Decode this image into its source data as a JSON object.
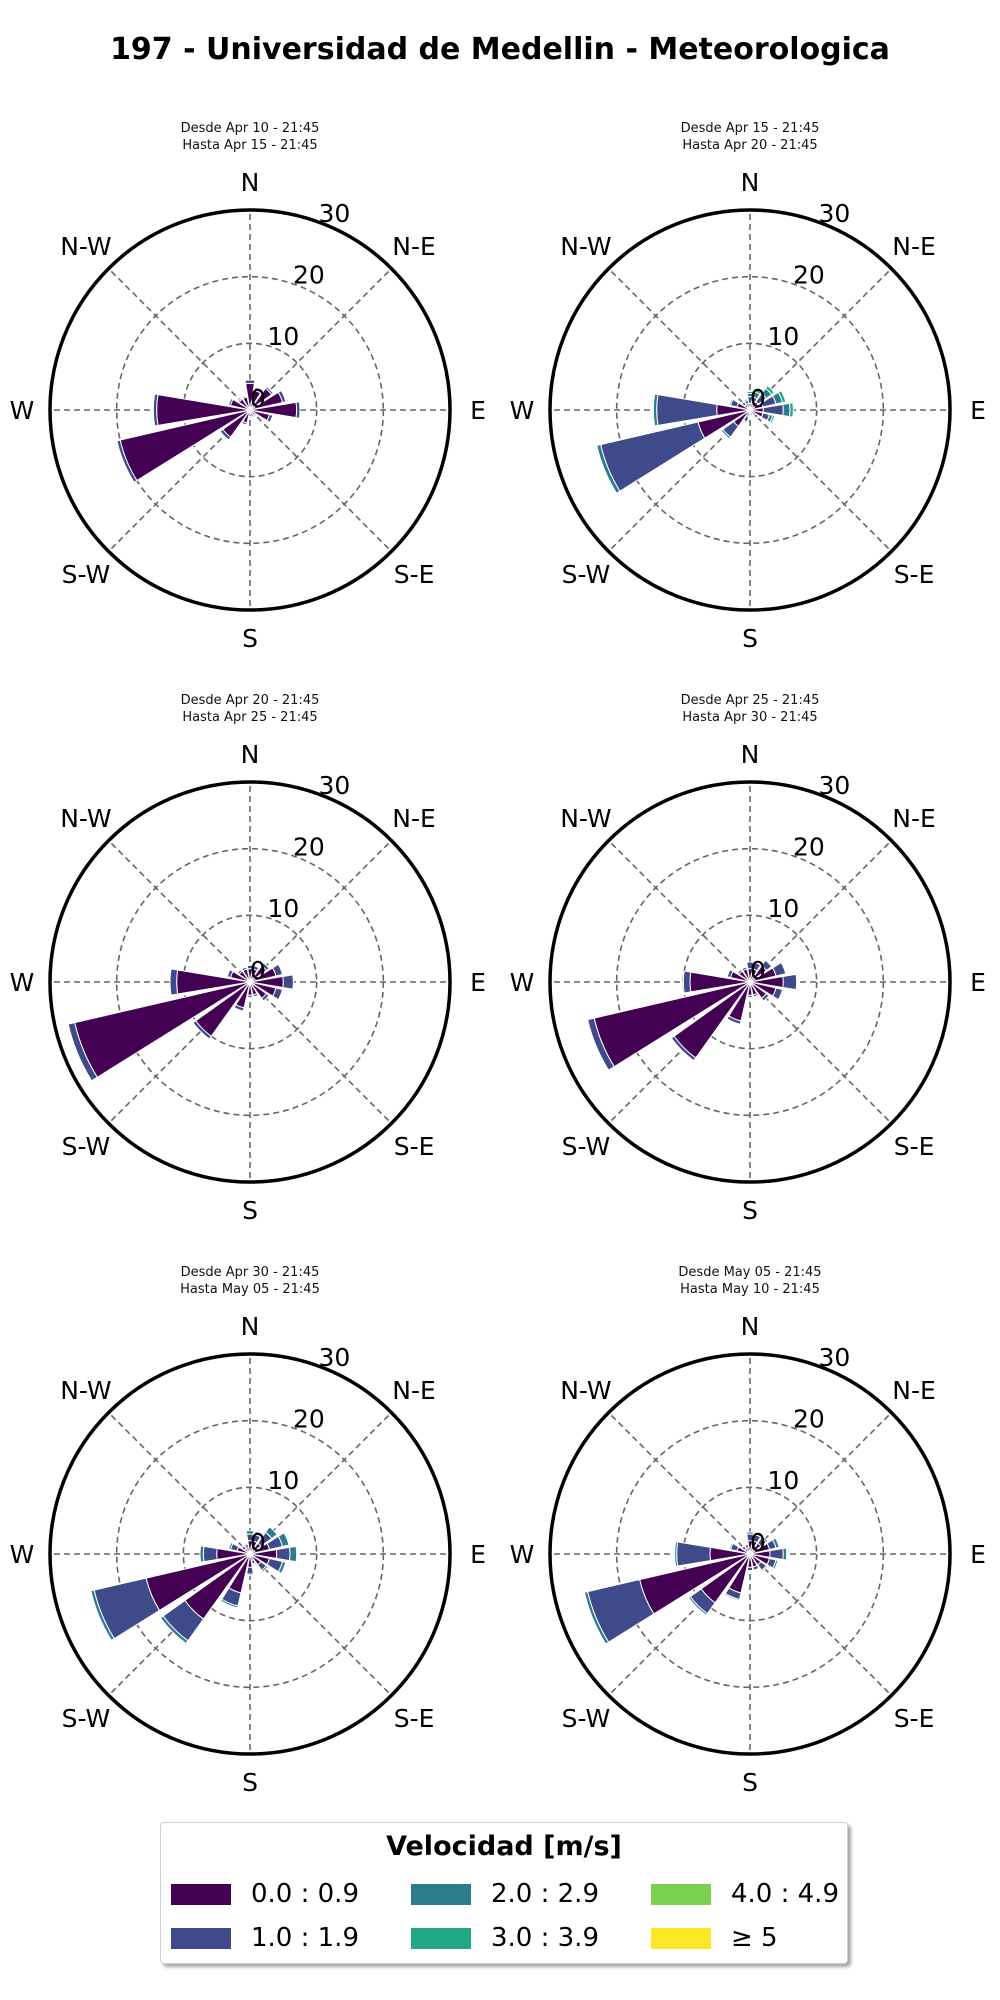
{
  "title": "197 - Universidad de Medellin - Meteorologica",
  "compass_labels": [
    "N",
    "N-E",
    "E",
    "S-E",
    "S",
    "S-W",
    "W",
    "N-W"
  ],
  "radial_ticks": [
    "0",
    "10",
    "20",
    "30"
  ],
  "colors": {
    "bins": [
      "#440154",
      "#3f4a8a",
      "#2c7c8e",
      "#22a884",
      "#7ad151",
      "#fde725"
    ],
    "grid": "#666666",
    "frame": "#000000"
  },
  "legend": {
    "title": "Velocidad [m/s]",
    "bins": [
      "0.0 : 0.9",
      "1.0 : 1.9",
      "2.0 : 2.9",
      "3.0 : 3.9",
      "4.0 : 4.9",
      "≥ 5"
    ]
  },
  "chart_data": [
    {
      "type": "windrose",
      "subtitle": [
        "Desde Apr 10 - 21:45",
        "Hasta Apr 15 - 21:45"
      ],
      "rmax": 30,
      "directions_deg": [
        0,
        22.5,
        45,
        67.5,
        90,
        112.5,
        135,
        157.5,
        180,
        202.5,
        225,
        247.5,
        270,
        292.5,
        315,
        337.5
      ],
      "series": [
        {
          "name": "0.0 : 0.9",
          "values": [
            4,
            3,
            4,
            5,
            7,
            3,
            1,
            1,
            1,
            2,
            5,
            20,
            14,
            3,
            2,
            2
          ]
        },
        {
          "name": "1.0 : 1.9",
          "values": [
            0.5,
            0.5,
            0.3,
            0.5,
            0.5,
            0.5,
            0.2,
            0.2,
            0.2,
            0.3,
            0.5,
            0.5,
            0.5,
            0.3,
            0.2,
            0.2
          ]
        },
        {
          "name": "2.0 : 2.9",
          "values": [
            0,
            0,
            0,
            0,
            0,
            0,
            0,
            0,
            0,
            0,
            0,
            0,
            0,
            0,
            0,
            0
          ]
        },
        {
          "name": "3.0 : 3.9",
          "values": [
            0,
            0,
            0,
            0,
            0,
            0,
            0,
            0,
            0,
            0,
            0,
            0,
            0,
            0,
            0,
            0
          ]
        },
        {
          "name": "4.0 : 4.9",
          "values": [
            0,
            0,
            0,
            0,
            0,
            0,
            0,
            0,
            0,
            0,
            0,
            0,
            0,
            0,
            0,
            0
          ]
        },
        {
          "name": "≥ 5",
          "values": [
            0,
            0,
            0,
            0,
            0,
            0,
            0,
            0,
            0,
            0,
            0,
            0,
            0,
            0,
            0,
            0
          ]
        }
      ]
    },
    {
      "type": "windrose",
      "subtitle": [
        "Desde Apr 15 - 21:45",
        "Hasta Apr 20 - 21:45"
      ],
      "rmax": 30,
      "directions_deg": [
        0,
        22.5,
        45,
        67.5,
        90,
        112.5,
        135,
        157.5,
        180,
        202.5,
        225,
        247.5,
        270,
        292.5,
        315,
        337.5
      ],
      "series": [
        {
          "name": "0.0 : 0.9",
          "values": [
            1,
            1,
            1.5,
            2,
            2,
            2,
            1,
            0.5,
            0.5,
            1,
            3,
            8,
            5,
            2,
            1,
            1
          ]
        },
        {
          "name": "1.0 : 1.9",
          "values": [
            1,
            1,
            1.5,
            2,
            3,
            1,
            0.5,
            0.3,
            0.3,
            0.8,
            2,
            15,
            9,
            1,
            0.5,
            0.5
          ]
        },
        {
          "name": "2.0 : 2.9",
          "values": [
            0.5,
            0.8,
            1,
            1,
            1,
            0.5,
            0.2,
            0.1,
            0.1,
            0.2,
            0.3,
            0.6,
            0.5,
            0.2,
            0.2,
            0.2
          ]
        },
        {
          "name": "3.0 : 3.9",
          "values": [
            0.3,
            0.5,
            0.5,
            0.5,
            0.5,
            0.3,
            0,
            0,
            0,
            0,
            0,
            0,
            0,
            0,
            0,
            0
          ]
        },
        {
          "name": "4.0 : 4.9",
          "values": [
            0,
            0,
            0,
            0,
            0,
            0,
            0,
            0,
            0,
            0,
            0,
            0,
            0,
            0,
            0,
            0
          ]
        },
        {
          "name": "≥ 5",
          "values": [
            0,
            0,
            0,
            0,
            0,
            0,
            0,
            0,
            0,
            0,
            0,
            0,
            0,
            0,
            0,
            0
          ]
        }
      ]
    },
    {
      "type": "windrose",
      "subtitle": [
        "Desde Apr 20 - 21:45",
        "Hasta Apr 25 - 21:45"
      ],
      "rmax": 30,
      "directions_deg": [
        0,
        22.5,
        45,
        67.5,
        90,
        112.5,
        135,
        157.5,
        180,
        202.5,
        225,
        247.5,
        270,
        292.5,
        315,
        337.5
      ],
      "series": [
        {
          "name": "0.0 : 0.9",
          "values": [
            2,
            2,
            3,
            4,
            5,
            4,
            3,
            2,
            2,
            4,
            10,
            27,
            11,
            3,
            2,
            2
          ]
        },
        {
          "name": "1.0 : 1.9",
          "values": [
            0.5,
            0.5,
            0.5,
            1,
            1.5,
            1,
            0.5,
            0.3,
            0.3,
            0.5,
            0.5,
            1,
            1,
            0.5,
            0.3,
            0.3
          ]
        },
        {
          "name": "2.0 : 2.9",
          "values": [
            0,
            0,
            0,
            0,
            0,
            0,
            0,
            0,
            0,
            0,
            0,
            0,
            0,
            0,
            0,
            0
          ]
        },
        {
          "name": "3.0 : 3.9",
          "values": [
            0,
            0,
            0,
            0,
            0,
            0,
            0,
            0,
            0,
            0,
            0,
            0,
            0,
            0,
            0,
            0
          ]
        },
        {
          "name": "4.0 : 4.9",
          "values": [
            0,
            0,
            0,
            0,
            0,
            0,
            0,
            0,
            0,
            0,
            0,
            0,
            0,
            0,
            0,
            0
          ]
        },
        {
          "name": "≥ 5",
          "values": [
            0,
            0,
            0,
            0,
            0,
            0,
            0,
            0,
            0,
            0,
            0,
            0,
            0,
            0,
            0,
            0
          ]
        }
      ]
    },
    {
      "type": "windrose",
      "subtitle": [
        "Desde Apr 25 - 21:45",
        "Hasta Apr 30 - 21:45"
      ],
      "rmax": 30,
      "directions_deg": [
        0,
        22.5,
        45,
        67.5,
        90,
        112.5,
        135,
        157.5,
        180,
        202.5,
        225,
        247.5,
        270,
        292.5,
        315,
        337.5
      ],
      "series": [
        {
          "name": "0.0 : 0.9",
          "values": [
            2,
            2,
            3,
            4,
            5,
            4,
            3,
            2,
            2,
            6,
            14,
            24,
            9,
            3,
            2,
            2
          ]
        },
        {
          "name": "1.0 : 1.9",
          "values": [
            1,
            1,
            1,
            1.5,
            2,
            1,
            0.5,
            0.3,
            0.3,
            0.5,
            0.5,
            1,
            1,
            0.5,
            0.3,
            0.3
          ]
        },
        {
          "name": "2.0 : 2.9",
          "values": [
            0,
            0,
            0,
            0,
            0,
            0,
            0,
            0,
            0,
            0,
            0,
            0,
            0,
            0,
            0,
            0
          ]
        },
        {
          "name": "3.0 : 3.9",
          "values": [
            0,
            0,
            0,
            0,
            0,
            0,
            0,
            0,
            0,
            0,
            0,
            0,
            0,
            0,
            0,
            0
          ]
        },
        {
          "name": "4.0 : 4.9",
          "values": [
            0,
            0,
            0,
            0,
            0,
            0,
            0,
            0,
            0,
            0,
            0,
            0,
            0,
            0,
            0,
            0
          ]
        },
        {
          "name": "≥ 5",
          "values": [
            0,
            0,
            0,
            0,
            0,
            0,
            0,
            0,
            0,
            0,
            0,
            0,
            0,
            0,
            0,
            0
          ]
        }
      ]
    },
    {
      "type": "windrose",
      "subtitle": [
        "Desde Apr 30 - 21:45",
        "Hasta May 05 - 21:45"
      ],
      "rmax": 30,
      "directions_deg": [
        0,
        22.5,
        45,
        67.5,
        90,
        112.5,
        135,
        157.5,
        180,
        202.5,
        225,
        247.5,
        270,
        292.5,
        315,
        337.5
      ],
      "series": [
        {
          "name": "0.0 : 0.9",
          "values": [
            2,
            2,
            2,
            3,
            4,
            3,
            2,
            1,
            2,
            6,
            12,
            16,
            5,
            2,
            1,
            1
          ]
        },
        {
          "name": "1.0 : 1.9",
          "values": [
            1,
            1,
            2,
            2,
            2,
            2,
            1,
            0.5,
            1,
            2,
            4,
            8,
            2,
            1,
            0.5,
            0.5
          ]
        },
        {
          "name": "2.0 : 2.9",
          "values": [
            0.5,
            0.5,
            1,
            1,
            1,
            0.5,
            0.3,
            0.2,
            0.2,
            0.3,
            0.5,
            0.5,
            0.5,
            0.3,
            0.2,
            0.2
          ]
        },
        {
          "name": "3.0 : 3.9",
          "values": [
            0,
            0,
            0,
            0,
            0,
            0,
            0,
            0,
            0,
            0,
            0,
            0,
            0,
            0,
            0,
            0
          ]
        },
        {
          "name": "4.0 : 4.9",
          "values": [
            0,
            0,
            0,
            0,
            0,
            0,
            0,
            0,
            0,
            0,
            0,
            0,
            0,
            0,
            0,
            0
          ]
        },
        {
          "name": "≥ 5",
          "values": [
            0,
            0,
            0,
            0,
            0,
            0,
            0,
            0,
            0,
            0,
            0,
            0,
            0,
            0,
            0,
            0
          ]
        }
      ]
    },
    {
      "type": "windrose",
      "subtitle": [
        "Desde May 05 - 21:45",
        "Hasta May 10 - 21:45"
      ],
      "rmax": 30,
      "directions_deg": [
        0,
        22.5,
        45,
        67.5,
        90,
        112.5,
        135,
        157.5,
        180,
        202.5,
        225,
        247.5,
        270,
        292.5,
        315,
        337.5
      ],
      "series": [
        {
          "name": "0.0 : 0.9",
          "values": [
            2,
            2,
            2,
            3,
            3,
            3,
            2,
            2,
            2,
            6,
            9,
            17,
            6,
            2,
            1,
            1
          ]
        },
        {
          "name": "1.0 : 1.9",
          "values": [
            1,
            1,
            1,
            1,
            2,
            1,
            1,
            0.5,
            0.5,
            1,
            2,
            8,
            5,
            1,
            0.5,
            0.5
          ]
        },
        {
          "name": "2.0 : 2.9",
          "values": [
            0.3,
            0.3,
            0.3,
            0.5,
            0.5,
            0.3,
            0.2,
            0.1,
            0.1,
            0.2,
            0.3,
            0.5,
            0.3,
            0.2,
            0.1,
            0.1
          ]
        },
        {
          "name": "3.0 : 3.9",
          "values": [
            0,
            0,
            0,
            0,
            0,
            0,
            0,
            0,
            0,
            0,
            0,
            0,
            0,
            0,
            0,
            0
          ]
        },
        {
          "name": "4.0 : 4.9",
          "values": [
            0,
            0,
            0,
            0,
            0,
            0,
            0,
            0,
            0,
            0,
            0,
            0,
            0,
            0,
            0,
            0
          ]
        },
        {
          "name": "≥ 5",
          "values": [
            0,
            0,
            0,
            0,
            0,
            0,
            0,
            0,
            0,
            0,
            0,
            0,
            0,
            0,
            0,
            0
          ]
        }
      ]
    }
  ]
}
